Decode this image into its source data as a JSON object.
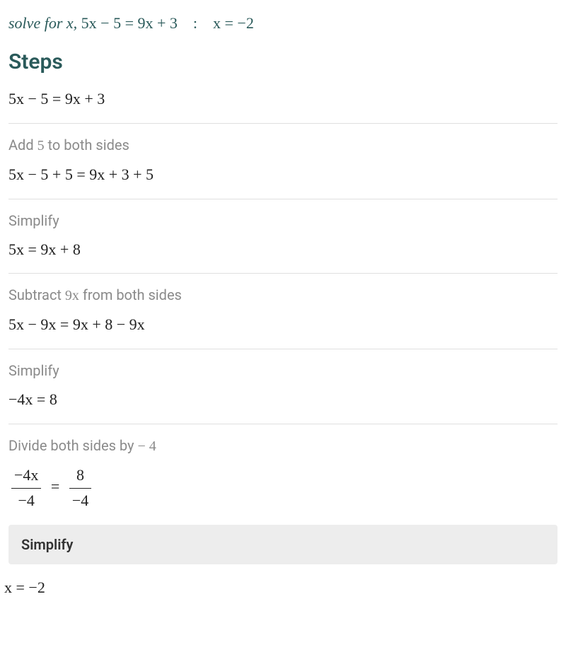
{
  "problem": {
    "label_italic": "solve for x,",
    "equation": "5x − 5 = 9x + 3",
    "colon": ":",
    "answer": "x = −2"
  },
  "steps_title": "Steps",
  "initial_equation": "5x − 5 = 9x + 3",
  "steps": [
    {
      "desc_prefix": "Add ",
      "desc_math": "5",
      "desc_suffix": " to both sides",
      "equation": "5x − 5 + 5 = 9x + 3 + 5"
    },
    {
      "desc_prefix": "Simplify",
      "desc_math": "",
      "desc_suffix": "",
      "equation": "5x = 9x + 8"
    },
    {
      "desc_prefix": "Subtract ",
      "desc_math": "9x",
      "desc_suffix": " from both sides",
      "equation": "5x − 9x = 9x + 8 − 9x"
    },
    {
      "desc_prefix": "Simplify",
      "desc_math": "",
      "desc_suffix": "",
      "equation": "−4x = 8"
    },
    {
      "desc_prefix": "Divide both sides by ",
      "desc_math": " − 4",
      "desc_suffix": "",
      "equation_type": "fraction",
      "left_num": "−4x",
      "left_den": "−4",
      "right_num": "8",
      "right_den": "−4"
    }
  ],
  "simplify_button": "Simplify",
  "final_answer": "x = −2",
  "colors": {
    "heading": "#2a5a5a",
    "step_text": "#8a8a8a",
    "equation_text": "#222222",
    "divider": "#e0e0e0",
    "button_bg": "#ededed",
    "background": "#ffffff"
  },
  "typography": {
    "problem_fontsize": 22,
    "title_fontsize": 30,
    "step_desc_fontsize": 20,
    "equation_fontsize": 22,
    "font_family_math": "Georgia, Times New Roman, serif",
    "font_family_ui": "-apple-system, Segoe UI, sans-serif"
  }
}
